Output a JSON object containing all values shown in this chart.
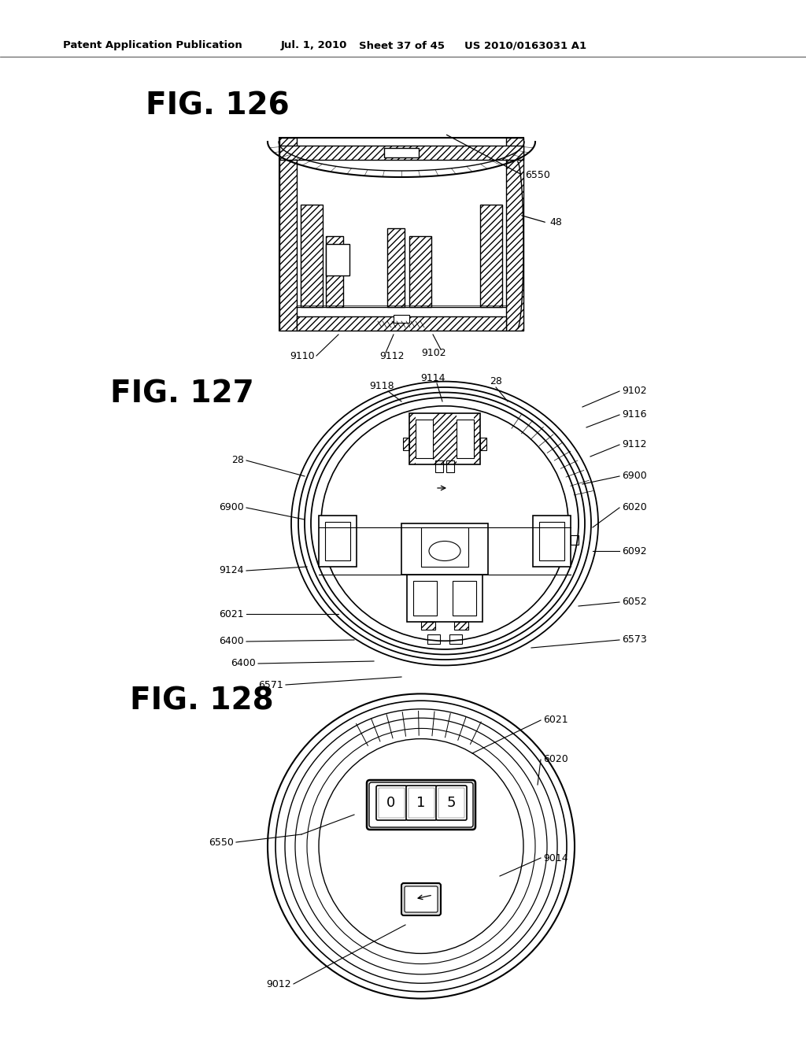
{
  "background_color": "#ffffff",
  "header_text": "Patent Application Publication",
  "header_date": "Jul. 1, 2010",
  "header_sheet": "Sheet 37 of 45",
  "header_patent": "US 2010/0163031 A1",
  "fig126_label": "FIG. 126",
  "fig127_label": "FIG. 127",
  "fig128_label": "FIG. 128",
  "line_color": "#000000",
  "text_color": "#000000",
  "header_fontsize": 9.5,
  "fig_label_fontsize": 28,
  "annotation_fontsize": 9
}
